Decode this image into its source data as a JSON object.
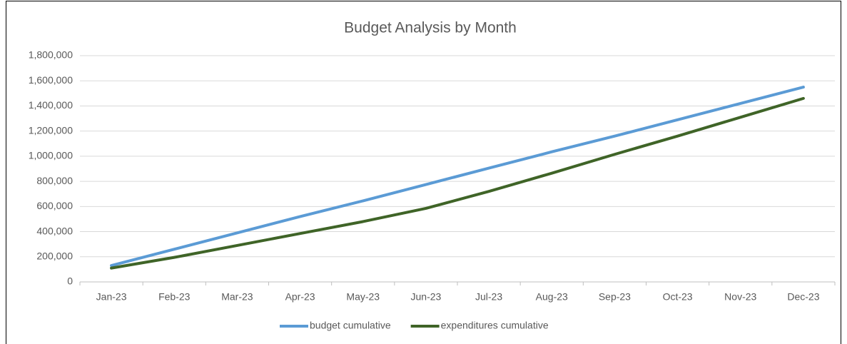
{
  "chart_data": {
    "type": "line",
    "title": "Budget Analysis by Month",
    "categories": [
      "Jan-23",
      "Feb-23",
      "Mar-23",
      "Apr-23",
      "May-23",
      "Jun-23",
      "Jul-23",
      "Aug-23",
      "Sep-23",
      "Oct-23",
      "Nov-23",
      "Dec-23"
    ],
    "series": [
      {
        "name": "budget cumulative",
        "color": "#5b9bd5",
        "values": [
          130000,
          260000,
          390000,
          520000,
          645000,
          775000,
          905000,
          1035000,
          1160000,
          1290000,
          1420000,
          1550000
        ]
      },
      {
        "name": "expenditures cumulative",
        "color": "#3f6427",
        "values": [
          110000,
          195000,
          290000,
          385000,
          480000,
          585000,
          720000,
          865000,
          1015000,
          1160000,
          1310000,
          1460000
        ]
      }
    ],
    "ylim": [
      0,
      1800000
    ],
    "yticks": [
      0,
      {
        "value": 200000,
        "label": "200,000"
      },
      {
        "value": 400000,
        "label": "400,000"
      },
      {
        "value": 600000,
        "label": "600,000"
      },
      {
        "value": 800000,
        "label": "800,000"
      },
      {
        "value": 1000000,
        "label": "1,000,000"
      },
      {
        "value": 1200000,
        "label": "1,200,000"
      },
      {
        "value": 1400000,
        "label": "1,400,000"
      },
      {
        "value": 1600000,
        "label": "1,600,000"
      },
      {
        "value": 1800000,
        "label": "1,800,000"
      }
    ],
    "grid": true,
    "legend": "bottom"
  }
}
